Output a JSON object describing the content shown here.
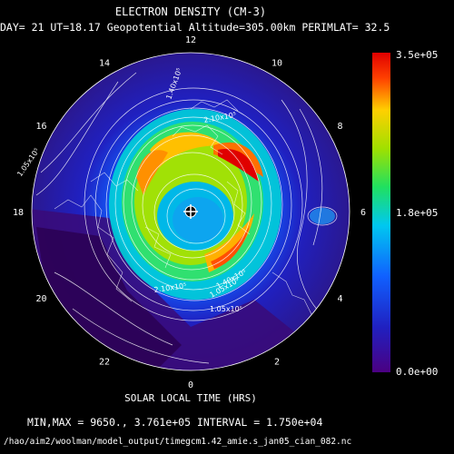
{
  "header": {
    "title": "ELECTRON DENSITY (CM-3)",
    "subtitle": "DAY= 21 UT=18.17 Geopotential Altitude=305.00km PERIMLAT= 32.5"
  },
  "footer": {
    "xlabel": "SOLAR LOCAL TIME (HRS)",
    "stats": "MIN,MAX =       9650., 3.761e+05 INTERVAL =  1.750e+04",
    "path": "/hao/aim2/woolman/model_output/timegcm1.42_amie.s_jan05_cian_082.nc"
  },
  "colors": {
    "background": "#000000",
    "contour": "#ffffff",
    "scale": [
      "#4b0082",
      "#2020c0",
      "#1060ff",
      "#00c8f0",
      "#20e060",
      "#a0e000",
      "#ffd000",
      "#ff4000",
      "#e00000"
    ]
  },
  "chart_data": {
    "type": "heatmap",
    "projection": "polar-stereographic",
    "title": "ELECTRON DENSITY (CM-3)",
    "xlabel": "SOLAR LOCAL TIME (HRS)",
    "local_time_ticks": [
      "12",
      "10",
      "8",
      "6",
      "4",
      "2",
      "0",
      "22",
      "20",
      "18",
      "16",
      "14"
    ],
    "contour_labels": [
      "1.40x10⁵",
      "2.10x10⁵",
      "1.05x10⁵",
      "1.05x10⁵",
      "2.10x10⁵",
      "1.40x10⁵",
      "1.05x10⁵"
    ],
    "colorbar": {
      "min": 0,
      "max": 350000,
      "tick_labels": [
        "3.5e+05",
        "1.8e+05",
        "0.0e+00"
      ]
    },
    "day": 21,
    "ut": 18.17,
    "altitude_km": 305.0,
    "perimlat": 32.5,
    "min": 9650,
    "max": 376100,
    "interval": 17500
  }
}
